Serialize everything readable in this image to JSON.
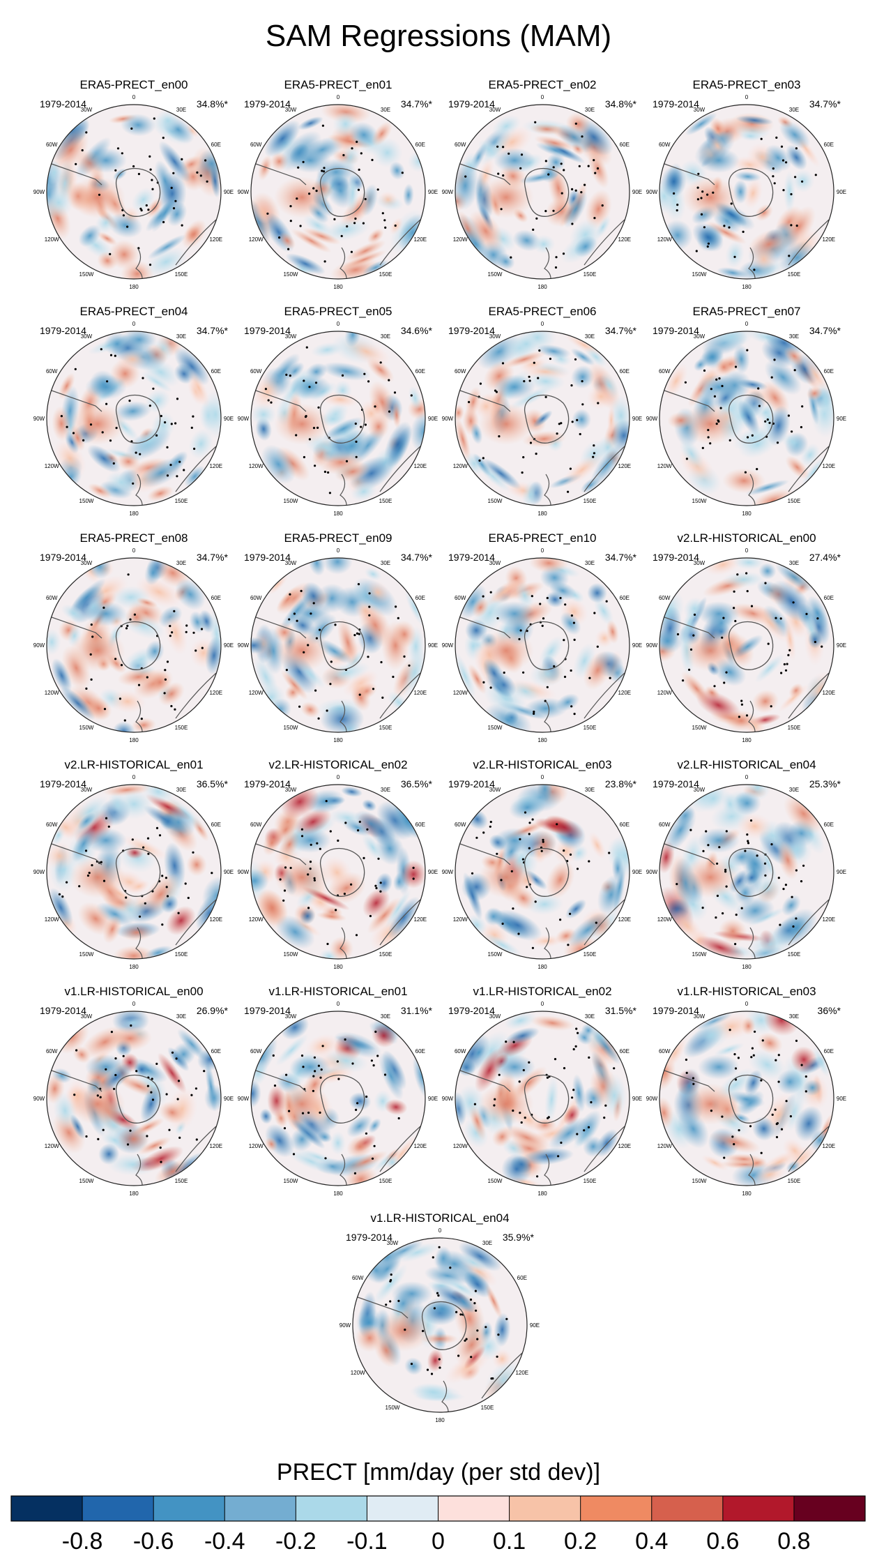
{
  "title": "SAM Regressions (MAM)",
  "period_label": "1979-2014",
  "longitude_labels": [
    "0",
    "30E",
    "60E",
    "90E",
    "120E",
    "150E",
    "180",
    "150W",
    "120W",
    "90W",
    "60W",
    "30W"
  ],
  "panels": [
    {
      "title": "ERA5-PRECT_en00",
      "variance": "34.8%*"
    },
    {
      "title": "ERA5-PRECT_en01",
      "variance": "34.7%*"
    },
    {
      "title": "ERA5-PRECT_en02",
      "variance": "34.8%*"
    },
    {
      "title": "ERA5-PRECT_en03",
      "variance": "34.7%*"
    },
    {
      "title": "ERA5-PRECT_en04",
      "variance": "34.7%*"
    },
    {
      "title": "ERA5-PRECT_en05",
      "variance": "34.6%*"
    },
    {
      "title": "ERA5-PRECT_en06",
      "variance": "34.7%*"
    },
    {
      "title": "ERA5-PRECT_en07",
      "variance": "34.7%*"
    },
    {
      "title": "ERA5-PRECT_en08",
      "variance": "34.7%*"
    },
    {
      "title": "ERA5-PRECT_en09",
      "variance": "34.7%*"
    },
    {
      "title": "ERA5-PRECT_en10",
      "variance": "34.7%*"
    },
    {
      "title": "v2.LR-HISTORICAL_en00",
      "variance": "27.4%*"
    },
    {
      "title": "v2.LR-HISTORICAL_en01",
      "variance": "36.5%*"
    },
    {
      "title": "v2.LR-HISTORICAL_en02",
      "variance": "36.5%*"
    },
    {
      "title": "v2.LR-HISTORICAL_en03",
      "variance": "23.8%*"
    },
    {
      "title": "v2.LR-HISTORICAL_en04",
      "variance": "25.3%*"
    },
    {
      "title": "v1.LR-HISTORICAL_en00",
      "variance": "26.9%*"
    },
    {
      "title": "v1.LR-HISTORICAL_en01",
      "variance": "31.1%*"
    },
    {
      "title": "v1.LR-HISTORICAL_en02",
      "variance": "31.5%*"
    },
    {
      "title": "v1.LR-HISTORICAL_en03",
      "variance": "36%*"
    },
    {
      "title": "v1.LR-HISTORICAL_en04",
      "variance": "35.9%*"
    }
  ],
  "colorbar": {
    "title": "PRECT [mm/day (per std dev)]",
    "colors": [
      "#053061",
      "#2166ac",
      "#4393c3",
      "#74add1",
      "#abd9e9",
      "#e0ecf4",
      "#fde0dc",
      "#f7c3a8",
      "#ef8a62",
      "#d6604d",
      "#b2182b",
      "#67001f"
    ],
    "ticks": [
      "-0.8",
      "-0.6",
      "-0.4",
      "-0.2",
      "-0.1",
      "0",
      "0.1",
      "0.2",
      "0.4",
      "0.6",
      "0.8"
    ]
  }
}
